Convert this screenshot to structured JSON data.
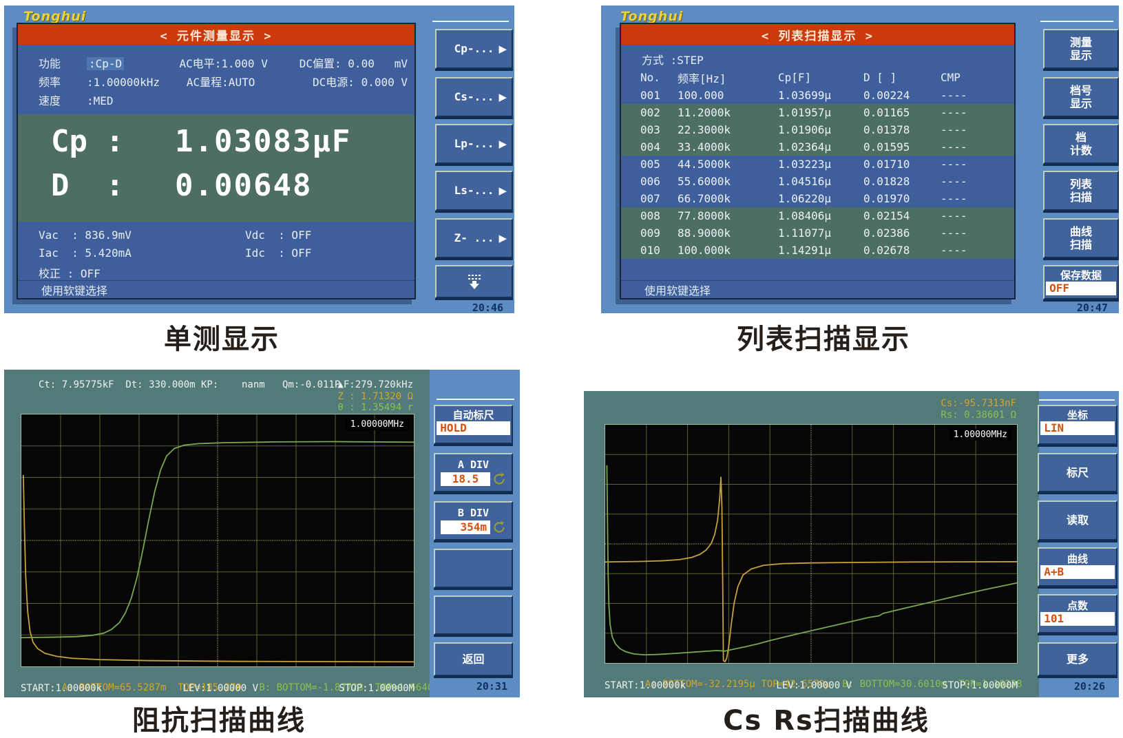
{
  "brand": "Tonghui",
  "captions": {
    "single": "单测显示",
    "list": "列表扫描显示",
    "impedance": "阻抗扫描曲线",
    "csrs": "Cs Rs扫描曲线"
  },
  "p1": {
    "title": "< 元件测量显示 >",
    "params": {
      "func_label": "功能",
      "func_value": ":Cp-D",
      "ac_level": "AC电平:1.000 V",
      "dc_bias": "DC偏置: 0.00   mV",
      "freq_label": "频率",
      "freq_value": ":1.00000kHz",
      "ac_range": "AC量程:AUTO",
      "dc_source": "DC电源: 0.000 V",
      "speed_label": "速度",
      "speed_value": ":MED"
    },
    "result": {
      "line1_label": "Cp :",
      "line1_value": "1.03083μF",
      "line2_label": "D  :",
      "line2_value": "0.00648"
    },
    "monitor": {
      "vac": "Vac  : 836.9mV",
      "iac": "Iac  : 5.420mA",
      "cal": "校正 : OFF",
      "vdc": "Vdc  : OFF",
      "idc": "Idc  : OFF"
    },
    "status": "使用软键选择",
    "softkeys": [
      "Cp-...",
      "Cs-...",
      "Lp-...",
      "Ls-...",
      "Z- ..."
    ],
    "time": "20:46"
  },
  "p2": {
    "title": "< 列表扫描显示 >",
    "mode": "方式 :STEP",
    "headers": [
      "No.",
      "频率[Hz]",
      "Cp[F]",
      "D [ ]",
      "CMP"
    ],
    "rows": [
      [
        "001",
        "100.000",
        "1.03699μ",
        "0.00224",
        "----"
      ],
      [
        "002",
        "11.2000k",
        "1.01957μ",
        "0.01165",
        "----"
      ],
      [
        "003",
        "22.3000k",
        "1.01906μ",
        "0.01378",
        "----"
      ],
      [
        "004",
        "33.4000k",
        "1.02364μ",
        "0.01595",
        "----"
      ],
      [
        "005",
        "44.5000k",
        "1.03223μ",
        "0.01710",
        "----"
      ],
      [
        "006",
        "55.6000k",
        "1.04516μ",
        "0.01828",
        "----"
      ],
      [
        "007",
        "66.7000k",
        "1.06220μ",
        "0.01970",
        "----"
      ],
      [
        "008",
        "77.8000k",
        "1.08406μ",
        "0.02154",
        "----"
      ],
      [
        "009",
        "88.9000k",
        "1.11077μ",
        "0.02386",
        "----"
      ],
      [
        "010",
        "100.000k",
        "1.14291μ",
        "0.02678",
        "----"
      ]
    ],
    "status": "使用软键选择",
    "softkeys": [
      [
        "测量",
        "显示"
      ],
      [
        "档号",
        "显示"
      ],
      [
        "档",
        "计数"
      ],
      [
        "列表",
        "扫描"
      ],
      [
        "曲线",
        "扫描"
      ]
    ],
    "save_label": "保存数据",
    "save_value": "OFF",
    "time": "20:47"
  },
  "p3": {
    "readout": "Ct: 7.95775kF  Dt: 330.000m KP:    nanm   Qm:-0.011P",
    "marker_freq": "▲F:279.720kHz",
    "z_value": "Z : 1.71320 Ω",
    "theta_value": "θ : 1.35494 r",
    "plot_label": "1.00000MHz",
    "footer_a": "A: BOTTOM=65.5287m  TOP=185.270",
    "footer_b": "B: BOTTOM=-1.87723  TOP=1.66403",
    "start": "START:1.00000k",
    "lev": "LEV:1.00000 V",
    "stop": "STOP:1.00000M",
    "softkeys": {
      "autoscale_label": "自动标尺",
      "autoscale_value": "HOLD",
      "adiv_label": "A DIV",
      "adiv_value": "18.5",
      "bdiv_label": "B DIV",
      "bdiv_value": "354m",
      "back": "返回"
    },
    "time": "20:31",
    "curves": [
      {
        "name": "curve-a-impedance",
        "color": "#c6a23b",
        "points": [
          [
            0.5,
            24
          ],
          [
            0.8,
            46
          ],
          [
            1.1,
            64
          ],
          [
            1.6,
            78
          ],
          [
            2.2,
            86
          ],
          [
            3,
            90.5
          ],
          [
            4.2,
            93
          ],
          [
            6,
            94.8
          ],
          [
            9,
            96
          ],
          [
            13,
            96.8
          ],
          [
            20,
            97.3
          ],
          [
            32,
            97.7
          ],
          [
            55,
            98
          ],
          [
            100,
            98.2
          ]
        ]
      },
      {
        "name": "curve-b-theta",
        "color": "#7aa851",
        "points": [
          [
            0,
            88.6
          ],
          [
            8,
            88.4
          ],
          [
            14,
            88.2
          ],
          [
            18,
            87.7
          ],
          [
            21,
            86.8
          ],
          [
            23,
            85.3
          ],
          [
            25,
            82.6
          ],
          [
            26.5,
            78.8
          ],
          [
            28,
            73
          ],
          [
            29.5,
            64.5
          ],
          [
            31,
            53.5
          ],
          [
            32.5,
            41.5
          ],
          [
            34,
            30.5
          ],
          [
            35.5,
            22
          ],
          [
            37,
            16.5
          ],
          [
            39,
            13.5
          ],
          [
            41.5,
            12.2
          ],
          [
            45,
            11.6
          ],
          [
            52,
            11.2
          ],
          [
            65,
            10.9
          ],
          [
            80,
            10.8
          ],
          [
            100,
            11
          ]
        ]
      }
    ]
  },
  "p4": {
    "cs_value": "Cs:-95.7313nF",
    "rs_value": "Rs: 0.38601 Ω",
    "plot_label": "1.00000MHz",
    "footer_a": "A: BOTTOM=-32.2195μ TOP=42.6579μ",
    "footer_b": "B: BOTTOM=30.6010m  TOP=1.16228",
    "start": "START:1.00000k",
    "lev": "LEV:1.00000 V",
    "stop": "STOP:1.00000M",
    "softkeys": {
      "coord_label": "坐标",
      "coord_value": "LIN",
      "scale": "标尺",
      "read": "读取",
      "trace_label": "曲线",
      "trace_value": "A+B",
      "points_label": "点数",
      "points_value": "101",
      "more": "更多"
    },
    "time": "20:26",
    "curves": [
      {
        "name": "curve-a-cs",
        "color": "#c6a23b",
        "points": [
          [
            0,
            57.6
          ],
          [
            8,
            57.4
          ],
          [
            14,
            57.1
          ],
          [
            18,
            56.6
          ],
          [
            21,
            55.7
          ],
          [
            23,
            54.4
          ],
          [
            24.5,
            52.6
          ],
          [
            25.7,
            50
          ],
          [
            26.6,
            46
          ],
          [
            27.3,
            40
          ],
          [
            27.8,
            31
          ],
          [
            28.1,
            22
          ],
          [
            28.35,
            35
          ],
          [
            28.55,
            70
          ],
          [
            28.7,
            99
          ],
          [
            29.1,
            99.5
          ],
          [
            29.5,
            98
          ],
          [
            30,
            93
          ],
          [
            30.6,
            84
          ],
          [
            31.3,
            75
          ],
          [
            32.2,
            68
          ],
          [
            33.5,
            63
          ],
          [
            35.5,
            60.5
          ],
          [
            38.5,
            59
          ],
          [
            43,
            58.3
          ],
          [
            50,
            58
          ],
          [
            60,
            57.8
          ],
          [
            75,
            57.6
          ],
          [
            100,
            57.5
          ]
        ]
      },
      {
        "name": "curve-b-rs",
        "color": "#7aa851",
        "points": [
          [
            0.4,
            17
          ],
          [
            0.55,
            40
          ],
          [
            0.7,
            62
          ],
          [
            0.9,
            76
          ],
          [
            1.2,
            84
          ],
          [
            1.7,
            89
          ],
          [
            2.5,
            92
          ],
          [
            3.6,
            94
          ],
          [
            5,
            95.3
          ],
          [
            7,
            96.2
          ],
          [
            9.5,
            96.6
          ],
          [
            13,
            96.4
          ],
          [
            17,
            96
          ],
          [
            22,
            95.4
          ],
          [
            27,
            94.8
          ],
          [
            29,
            95
          ],
          [
            31,
            94.3
          ],
          [
            34,
            93.2
          ],
          [
            37,
            92
          ],
          [
            40,
            90.6
          ],
          [
            44,
            88.9
          ],
          [
            48,
            87.3
          ],
          [
            52,
            85.7
          ],
          [
            56,
            84.1
          ],
          [
            60,
            82.5
          ],
          [
            64,
            80.9
          ],
          [
            66.5,
            80.2
          ],
          [
            67.5,
            79.2
          ],
          [
            72,
            77.3
          ],
          [
            78,
            74.9
          ],
          [
            85,
            72
          ],
          [
            92,
            69.3
          ],
          [
            100,
            66.4
          ]
        ]
      }
    ]
  }
}
